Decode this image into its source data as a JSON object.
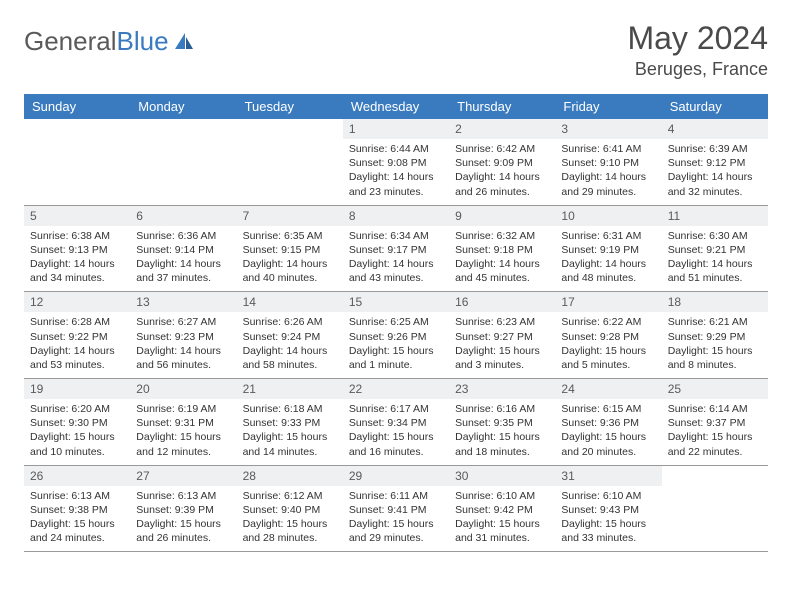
{
  "brand": {
    "word1": "General",
    "word2": "Blue"
  },
  "title": "May 2024",
  "location": "Beruges, France",
  "colors": {
    "header_bg": "#3a7bbf",
    "header_text": "#ffffff",
    "daynum_bg": "#eef0f2",
    "border": "#999999",
    "text": "#333333",
    "title_text": "#4a4a4a"
  },
  "day_headers": [
    "Sunday",
    "Monday",
    "Tuesday",
    "Wednesday",
    "Thursday",
    "Friday",
    "Saturday"
  ],
  "weeks": [
    [
      {
        "n": "",
        "sr": "",
        "ss": "",
        "dl": ""
      },
      {
        "n": "",
        "sr": "",
        "ss": "",
        "dl": ""
      },
      {
        "n": "",
        "sr": "",
        "ss": "",
        "dl": ""
      },
      {
        "n": "1",
        "sr": "Sunrise: 6:44 AM",
        "ss": "Sunset: 9:08 PM",
        "dl": "Daylight: 14 hours and 23 minutes."
      },
      {
        "n": "2",
        "sr": "Sunrise: 6:42 AM",
        "ss": "Sunset: 9:09 PM",
        "dl": "Daylight: 14 hours and 26 minutes."
      },
      {
        "n": "3",
        "sr": "Sunrise: 6:41 AM",
        "ss": "Sunset: 9:10 PM",
        "dl": "Daylight: 14 hours and 29 minutes."
      },
      {
        "n": "4",
        "sr": "Sunrise: 6:39 AM",
        "ss": "Sunset: 9:12 PM",
        "dl": "Daylight: 14 hours and 32 minutes."
      }
    ],
    [
      {
        "n": "5",
        "sr": "Sunrise: 6:38 AM",
        "ss": "Sunset: 9:13 PM",
        "dl": "Daylight: 14 hours and 34 minutes."
      },
      {
        "n": "6",
        "sr": "Sunrise: 6:36 AM",
        "ss": "Sunset: 9:14 PM",
        "dl": "Daylight: 14 hours and 37 minutes."
      },
      {
        "n": "7",
        "sr": "Sunrise: 6:35 AM",
        "ss": "Sunset: 9:15 PM",
        "dl": "Daylight: 14 hours and 40 minutes."
      },
      {
        "n": "8",
        "sr": "Sunrise: 6:34 AM",
        "ss": "Sunset: 9:17 PM",
        "dl": "Daylight: 14 hours and 43 minutes."
      },
      {
        "n": "9",
        "sr": "Sunrise: 6:32 AM",
        "ss": "Sunset: 9:18 PM",
        "dl": "Daylight: 14 hours and 45 minutes."
      },
      {
        "n": "10",
        "sr": "Sunrise: 6:31 AM",
        "ss": "Sunset: 9:19 PM",
        "dl": "Daylight: 14 hours and 48 minutes."
      },
      {
        "n": "11",
        "sr": "Sunrise: 6:30 AM",
        "ss": "Sunset: 9:21 PM",
        "dl": "Daylight: 14 hours and 51 minutes."
      }
    ],
    [
      {
        "n": "12",
        "sr": "Sunrise: 6:28 AM",
        "ss": "Sunset: 9:22 PM",
        "dl": "Daylight: 14 hours and 53 minutes."
      },
      {
        "n": "13",
        "sr": "Sunrise: 6:27 AM",
        "ss": "Sunset: 9:23 PM",
        "dl": "Daylight: 14 hours and 56 minutes."
      },
      {
        "n": "14",
        "sr": "Sunrise: 6:26 AM",
        "ss": "Sunset: 9:24 PM",
        "dl": "Daylight: 14 hours and 58 minutes."
      },
      {
        "n": "15",
        "sr": "Sunrise: 6:25 AM",
        "ss": "Sunset: 9:26 PM",
        "dl": "Daylight: 15 hours and 1 minute."
      },
      {
        "n": "16",
        "sr": "Sunrise: 6:23 AM",
        "ss": "Sunset: 9:27 PM",
        "dl": "Daylight: 15 hours and 3 minutes."
      },
      {
        "n": "17",
        "sr": "Sunrise: 6:22 AM",
        "ss": "Sunset: 9:28 PM",
        "dl": "Daylight: 15 hours and 5 minutes."
      },
      {
        "n": "18",
        "sr": "Sunrise: 6:21 AM",
        "ss": "Sunset: 9:29 PM",
        "dl": "Daylight: 15 hours and 8 minutes."
      }
    ],
    [
      {
        "n": "19",
        "sr": "Sunrise: 6:20 AM",
        "ss": "Sunset: 9:30 PM",
        "dl": "Daylight: 15 hours and 10 minutes."
      },
      {
        "n": "20",
        "sr": "Sunrise: 6:19 AM",
        "ss": "Sunset: 9:31 PM",
        "dl": "Daylight: 15 hours and 12 minutes."
      },
      {
        "n": "21",
        "sr": "Sunrise: 6:18 AM",
        "ss": "Sunset: 9:33 PM",
        "dl": "Daylight: 15 hours and 14 minutes."
      },
      {
        "n": "22",
        "sr": "Sunrise: 6:17 AM",
        "ss": "Sunset: 9:34 PM",
        "dl": "Daylight: 15 hours and 16 minutes."
      },
      {
        "n": "23",
        "sr": "Sunrise: 6:16 AM",
        "ss": "Sunset: 9:35 PM",
        "dl": "Daylight: 15 hours and 18 minutes."
      },
      {
        "n": "24",
        "sr": "Sunrise: 6:15 AM",
        "ss": "Sunset: 9:36 PM",
        "dl": "Daylight: 15 hours and 20 minutes."
      },
      {
        "n": "25",
        "sr": "Sunrise: 6:14 AM",
        "ss": "Sunset: 9:37 PM",
        "dl": "Daylight: 15 hours and 22 minutes."
      }
    ],
    [
      {
        "n": "26",
        "sr": "Sunrise: 6:13 AM",
        "ss": "Sunset: 9:38 PM",
        "dl": "Daylight: 15 hours and 24 minutes."
      },
      {
        "n": "27",
        "sr": "Sunrise: 6:13 AM",
        "ss": "Sunset: 9:39 PM",
        "dl": "Daylight: 15 hours and 26 minutes."
      },
      {
        "n": "28",
        "sr": "Sunrise: 6:12 AM",
        "ss": "Sunset: 9:40 PM",
        "dl": "Daylight: 15 hours and 28 minutes."
      },
      {
        "n": "29",
        "sr": "Sunrise: 6:11 AM",
        "ss": "Sunset: 9:41 PM",
        "dl": "Daylight: 15 hours and 29 minutes."
      },
      {
        "n": "30",
        "sr": "Sunrise: 6:10 AM",
        "ss": "Sunset: 9:42 PM",
        "dl": "Daylight: 15 hours and 31 minutes."
      },
      {
        "n": "31",
        "sr": "Sunrise: 6:10 AM",
        "ss": "Sunset: 9:43 PM",
        "dl": "Daylight: 15 hours and 33 minutes."
      },
      {
        "n": "",
        "sr": "",
        "ss": "",
        "dl": ""
      }
    ]
  ]
}
